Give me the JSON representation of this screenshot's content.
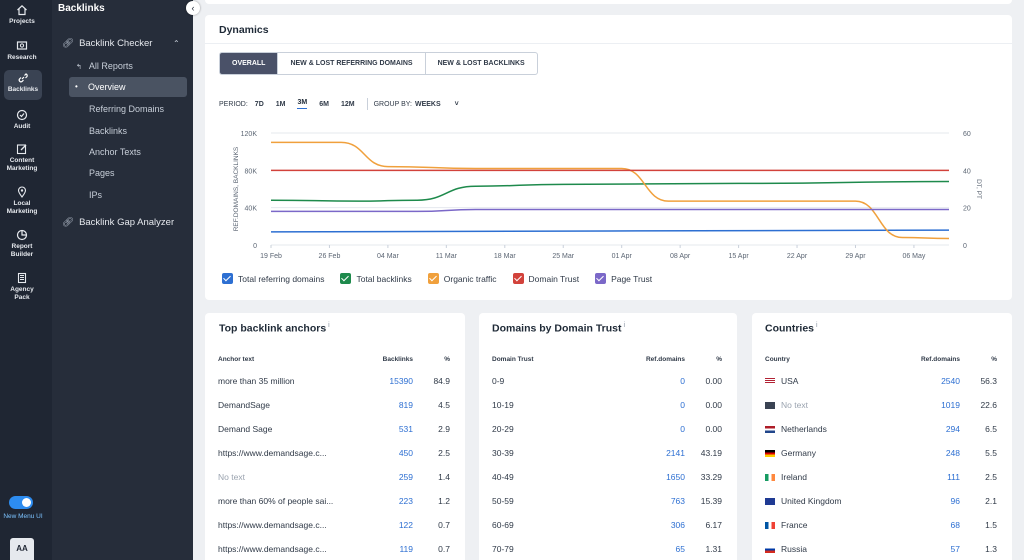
{
  "rail": {
    "items": [
      {
        "label": "Projects",
        "icon": "home-icon"
      },
      {
        "label": "Research",
        "icon": "research-icon"
      },
      {
        "label": "Backlinks",
        "icon": "link-icon",
        "active": true
      },
      {
        "label": "Audit",
        "icon": "audit-icon"
      },
      {
        "label": "Content Marketing",
        "line1": "Content",
        "line2": "Marketing",
        "icon": "edit-icon"
      },
      {
        "label": "Local Marketing",
        "line1": "Local",
        "line2": "Marketing",
        "icon": "location-icon"
      },
      {
        "label": "Report Builder",
        "line1": "Report",
        "line2": "Builder",
        "icon": "report-icon"
      },
      {
        "label": "Agency Pack",
        "line1": "Agency",
        "line2": "Pack",
        "icon": "building-icon"
      }
    ],
    "toggle_label": "New Menu UI",
    "avatar": "AA"
  },
  "nav": {
    "title": "Backlinks",
    "group": "Backlink Checker",
    "items": [
      "All Reports",
      "Overview",
      "Referring Domains",
      "Backlinks",
      "Anchor Texts",
      "Pages",
      "IPs"
    ],
    "gap": "Backlink Gap Analyzer"
  },
  "dynamics": {
    "title": "Dynamics",
    "tabs": [
      "OVERALL",
      "NEW & LOST REFERRING DOMAINS",
      "NEW & LOST BACKLINKS"
    ],
    "period_label": "PERIOD:",
    "periods": [
      "7D",
      "1M",
      "3M",
      "6M",
      "12M"
    ],
    "group_label": "GROUP BY:",
    "group_value": "WEEKS"
  },
  "chart_data": {
    "type": "line",
    "x": [
      "19 Feb",
      "26 Feb",
      "04 Mar",
      "11 Mar",
      "18 Mar",
      "25 Mar",
      "01 Apr",
      "08 Apr",
      "15 Apr",
      "22 Apr",
      "29 Apr",
      "06 May"
    ],
    "ylabel": "REF.DOMAINS, BACKLINKS",
    "y2label": "DT, PT",
    "yticks": [
      "0",
      "40K",
      "80K",
      "120K"
    ],
    "y2ticks": [
      "0",
      "20",
      "40",
      "60"
    ],
    "ylim": [
      0,
      120000
    ],
    "y2lim": [
      0,
      60
    ],
    "grid": true,
    "series": [
      {
        "name": "Total referring domains",
        "color": "#2d6fd2",
        "axis": "left",
        "values": [
          [
            0,
            14000
          ],
          [
            11.6,
            16000
          ]
        ]
      },
      {
        "name": "Total backlinks",
        "color": "#1e8a4c",
        "axis": "left",
        "values": [
          [
            0,
            48000
          ],
          [
            1.5,
            47000
          ],
          [
            2.5,
            48000
          ],
          [
            3.5,
            63000
          ],
          [
            5,
            65000
          ],
          [
            8,
            66000
          ],
          [
            11.6,
            68000
          ]
        ]
      },
      {
        "name": "Organic traffic",
        "color": "#f0a03c",
        "axis": "left",
        "values": [
          [
            0,
            110000
          ],
          [
            1.2,
            110000
          ],
          [
            2,
            84000
          ],
          [
            3.5,
            82000
          ],
          [
            6,
            82000
          ],
          [
            6.8,
            47000
          ],
          [
            10,
            47000
          ],
          [
            10.8,
            8000
          ],
          [
            11.6,
            7000
          ]
        ]
      },
      {
        "name": "Domain Trust",
        "color": "#d2423b",
        "axis": "right",
        "values": [
          [
            0,
            40
          ],
          [
            11.6,
            40
          ]
        ]
      },
      {
        "name": "Page Trust",
        "color": "#7b68c8",
        "axis": "right",
        "values": [
          [
            0,
            18
          ],
          [
            2.5,
            18
          ],
          [
            3.5,
            19
          ],
          [
            11.6,
            19
          ]
        ]
      }
    ]
  },
  "anchors": {
    "title": "Top backlink anchors",
    "headers": [
      "Anchor text",
      "Backlinks",
      "%"
    ],
    "rows": [
      {
        "a": "more than 35 million",
        "b": "15390",
        "p": "84.9"
      },
      {
        "a": "DemandSage",
        "b": "819",
        "p": "4.5"
      },
      {
        "a": "Demand Sage",
        "b": "531",
        "p": "2.9"
      },
      {
        "a": "https://www.demandsage.c...",
        "b": "450",
        "p": "2.5"
      },
      {
        "a": "No text",
        "b": "259",
        "p": "1.4",
        "muted": true
      },
      {
        "a": "more than 60% of people sai...",
        "b": "223",
        "p": "1.2"
      },
      {
        "a": "https://www.demandsage.c...",
        "b": "122",
        "p": "0.7"
      },
      {
        "a": "https://www.demandsage.c...",
        "b": "119",
        "p": "0.7"
      }
    ]
  },
  "domains": {
    "title": "Domains by Domain Trust",
    "headers": [
      "Domain Trust",
      "Ref.domains",
      "%"
    ],
    "rows": [
      {
        "a": "0-9",
        "b": "0",
        "p": "0.00"
      },
      {
        "a": "10-19",
        "b": "0",
        "p": "0.00"
      },
      {
        "a": "20-29",
        "b": "0",
        "p": "0.00"
      },
      {
        "a": "30-39",
        "b": "2141",
        "p": "43.19"
      },
      {
        "a": "40-49",
        "b": "1650",
        "p": "33.29"
      },
      {
        "a": "50-59",
        "b": "763",
        "p": "15.39"
      },
      {
        "a": "60-69",
        "b": "306",
        "p": "6.17"
      },
      {
        "a": "70-79",
        "b": "65",
        "p": "1.31"
      }
    ]
  },
  "countries": {
    "title": "Countries",
    "headers": [
      "Country",
      "Ref.domains",
      "%"
    ],
    "rows": [
      {
        "a": "USA",
        "b": "2540",
        "p": "56.3",
        "flag": "us"
      },
      {
        "a": "No text",
        "b": "1019",
        "p": "22.6",
        "flag": "none",
        "muted": true
      },
      {
        "a": "Netherlands",
        "b": "294",
        "p": "6.5",
        "flag": "nl"
      },
      {
        "a": "Germany",
        "b": "248",
        "p": "5.5",
        "flag": "de"
      },
      {
        "a": "Ireland",
        "b": "111",
        "p": "2.5",
        "flag": "ie"
      },
      {
        "a": "United Kingdom",
        "b": "96",
        "p": "2.1",
        "flag": "gb"
      },
      {
        "a": "France",
        "b": "68",
        "p": "1.5",
        "flag": "fr"
      },
      {
        "a": "Russia",
        "b": "57",
        "p": "1.3",
        "flag": "ru"
      }
    ]
  }
}
